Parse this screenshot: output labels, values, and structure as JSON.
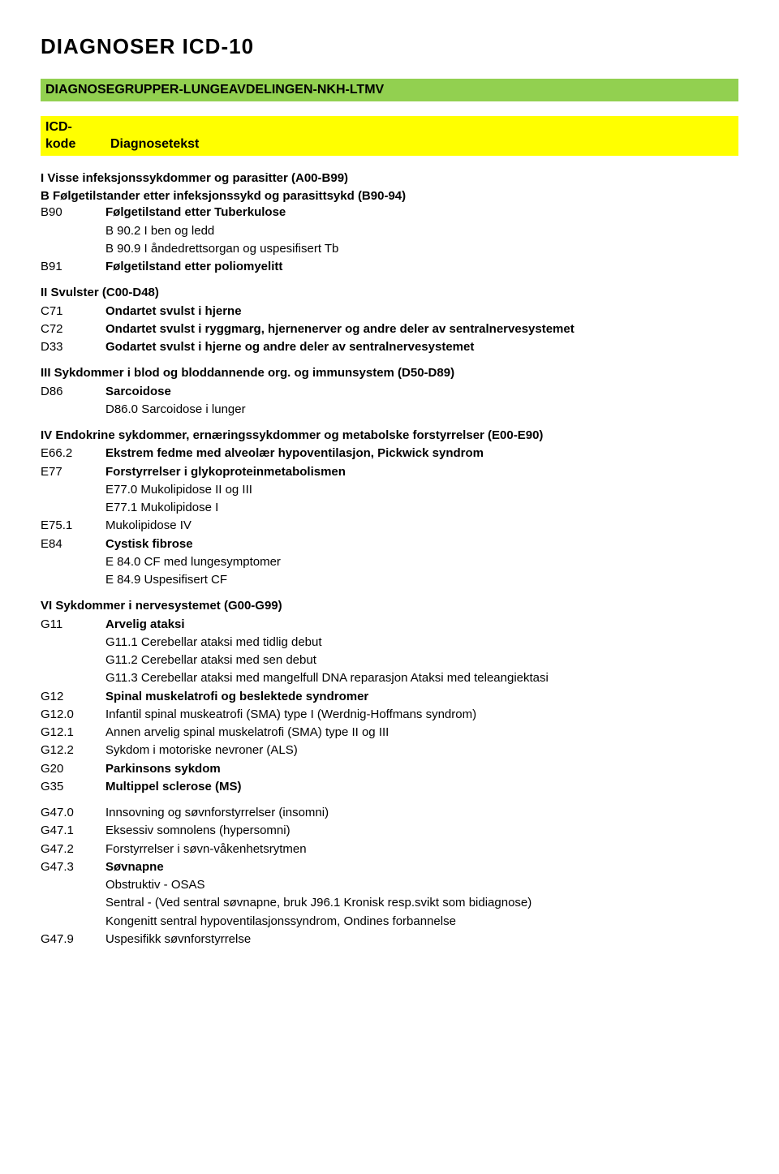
{
  "page_title": "DIAGNOSER  ICD-10",
  "band_green_text": "DIAGNOSEGRUPPER-LUNGEAVDELINGEN-NKH-LTMV",
  "band_green_bg": "#92d050",
  "band_yellow_bg": "#ffff00",
  "header_code_line1": "ICD-",
  "header_code_line2": "kode",
  "header_text": "Diagnosetekst",
  "sec1": {
    "title": "I Visse infeksjonssykdommer og parasitter (A00-B99)",
    "sub": "B Følgetilstander etter infeksjonssykd og parasittsykd (B90-94)",
    "b90_code": "B90",
    "b90_text": "Følgetilstand etter Tuberkulose",
    "b90_a": "B 90.2 I ben og ledd",
    "b90_b": "B 90.9 I åndedrettsorgan og uspesifisert Tb",
    "b91_code": "B91",
    "b91_text": "Følgetilstand etter poliomyelitt"
  },
  "sec2": {
    "title": "II Svulster (C00-D48)",
    "c71_code": "C71",
    "c71_text": "Ondartet svulst i hjerne",
    "c72_code": "C72",
    "c72_text": "Ondartet svulst i ryggmarg, hjernenerver og andre deler av sentralnervesystemet",
    "d33_code": "D33",
    "d33_text": "Godartet svulst i hjerne og andre deler av sentralnervesystemet"
  },
  "sec3": {
    "title": "III Sykdommer i blod og bloddannende org. og immunsystem (D50-D89)",
    "d86_code": "D86",
    "d86_text": "Sarcoidose",
    "d86_sub": "D86.0 Sarcoidose i lunger"
  },
  "sec4": {
    "title": "IV Endokrine sykdommer, ernæringssykdommer og metabolske forstyrrelser (E00-E90)",
    "e66_code": "E66.2",
    "e66_text": "Ekstrem fedme med alveolær hypoventilasjon, Pickwick syndrom",
    "e77_code": "E77",
    "e77_text": "Forstyrrelser i glykoproteinmetabolismen",
    "e77_a": "E77.0 Mukolipidose II og III",
    "e77_b": "E77.1 Mukolipidose I",
    "e75_code": "E75.1",
    "e75_text": "Mukolipidose IV",
    "e84_code": "E84",
    "e84_text": "Cystisk fibrose",
    "e84_a": "E 84.0 CF med lungesymptomer",
    "e84_b": "E 84.9 Uspesifisert CF"
  },
  "sec6": {
    "title": "VI Sykdommer i nervesystemet (G00-G99)",
    "g11_code": "G11",
    "g11_text": "Arvelig ataksi",
    "g11_a": "G11.1 Cerebellar ataksi med tidlig debut",
    "g11_b": "G11.2 Cerebellar ataksi med sen debut",
    "g11_c": "G11.3 Cerebellar ataksi med mangelfull DNA reparasjon Ataksi med teleangiektasi",
    "g12_code": "G12",
    "g12_text": "Spinal muskelatrofi og beslektede syndromer",
    "g12_0_code": "G12.0",
    "g12_0_text": "Infantil spinal muskeatrofi (SMA) type I (Werdnig-Hoffmans syndrom)",
    "g12_1_code": "G12.1",
    "g12_1_text": "Annen arvelig spinal muskelatrofi (SMA) type II og III",
    "g12_2_code": "G12.2",
    "g12_2_text": "Sykdom i motoriske nevroner (ALS)",
    "g20_code": "G20",
    "g20_text": "Parkinsons sykdom",
    "g35_code": "G35",
    "g35_text": "Multippel sclerose (MS)"
  },
  "sec6b": {
    "g47_0_code": "G47.0",
    "g47_0_text": "Innsovning og søvnforstyrrelser (insomni)",
    "g47_1_code": "G47.1",
    "g47_1_text": "Eksessiv somnolens (hypersomni)",
    "g47_2_code": "G47.2",
    "g47_2_text": "Forstyrrelser i søvn-våkenhetsrytmen",
    "g47_3_code": "G47.3",
    "g47_3_text": "Søvnapne",
    "g47_3_a": "Obstruktiv - OSAS",
    "g47_3_b": "Sentral - (Ved sentral søvnapne, bruk J96.1 Kronisk resp.svikt som bidiagnose)",
    "g47_3_c": "Kongenitt sentral hypoventilasjonssyndrom, Ondines forbannelse",
    "g47_9_code": "G47.9",
    "g47_9_text": "Uspesifikk søvnforstyrrelse"
  }
}
